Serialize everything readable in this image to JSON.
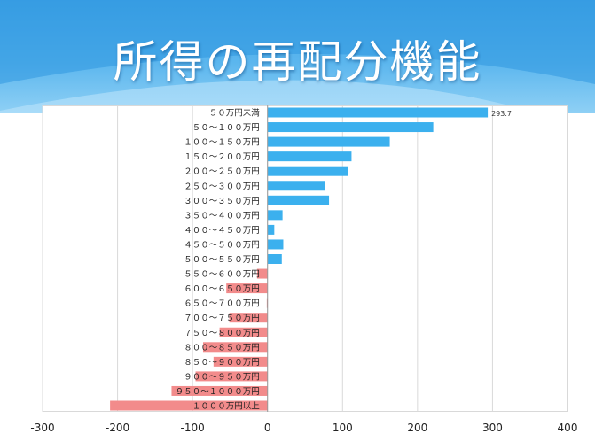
{
  "slide": {
    "title": "所得の再配分機能"
  },
  "chart_data": {
    "type": "bar",
    "orientation": "horizontal",
    "categories": [
      "５０万円未満",
      "５０～１００万円",
      "１００～１５０万円",
      "１５０～２００万円",
      "２００～２５０万円",
      "２５０～３００万円",
      "３００～３５０万円",
      "３５０～４００万円",
      "４００～４５０万円",
      "４５０～５００万円",
      "５００～５５０万円",
      "５５０～６００万円",
      "６００～６５０万円",
      "６５０～７００万円",
      "７００～７５０万円",
      "７５０～８００万円",
      "８００～８５０万円",
      "８５０～９００万円",
      "９００～９５０万円",
      "９５０～１０００万円",
      "１０００万円以上"
    ],
    "values": [
      293.7,
      221,
      163,
      112,
      107,
      77,
      82,
      20,
      9,
      21,
      19,
      -14,
      -55,
      -1,
      -51,
      -64,
      -86,
      -72,
      -96,
      -128,
      -210
    ],
    "data_labels": [
      "293.7"
    ],
    "xlim": [
      -300,
      400
    ],
    "xticks": [
      -300,
      -200,
      -100,
      0,
      100,
      200,
      300,
      400
    ],
    "grid": true,
    "colors": {
      "positive": "#3bb0ee",
      "negative": "#f28b8b"
    }
  }
}
